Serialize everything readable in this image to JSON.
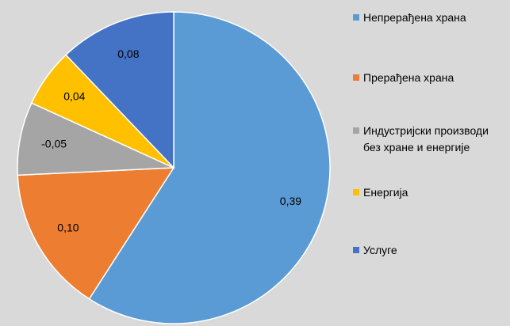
{
  "chart_data": {
    "type": "pie",
    "categories": [
      "Непрерађена храна",
      "Прерађена храна",
      "Индустријски производи без хране и енергије",
      "Енергија",
      "Услуге"
    ],
    "values": [
      0.39,
      0.1,
      -0.05,
      0.04,
      0.08
    ],
    "value_labels": [
      "0,39",
      "0,10",
      "-0,05",
      "0,04",
      "0,08"
    ],
    "colors": [
      "#5b9bd5",
      "#ed7d31",
      "#a5a5a5",
      "#ffc000",
      "#4472c4"
    ],
    "legend": "right"
  }
}
